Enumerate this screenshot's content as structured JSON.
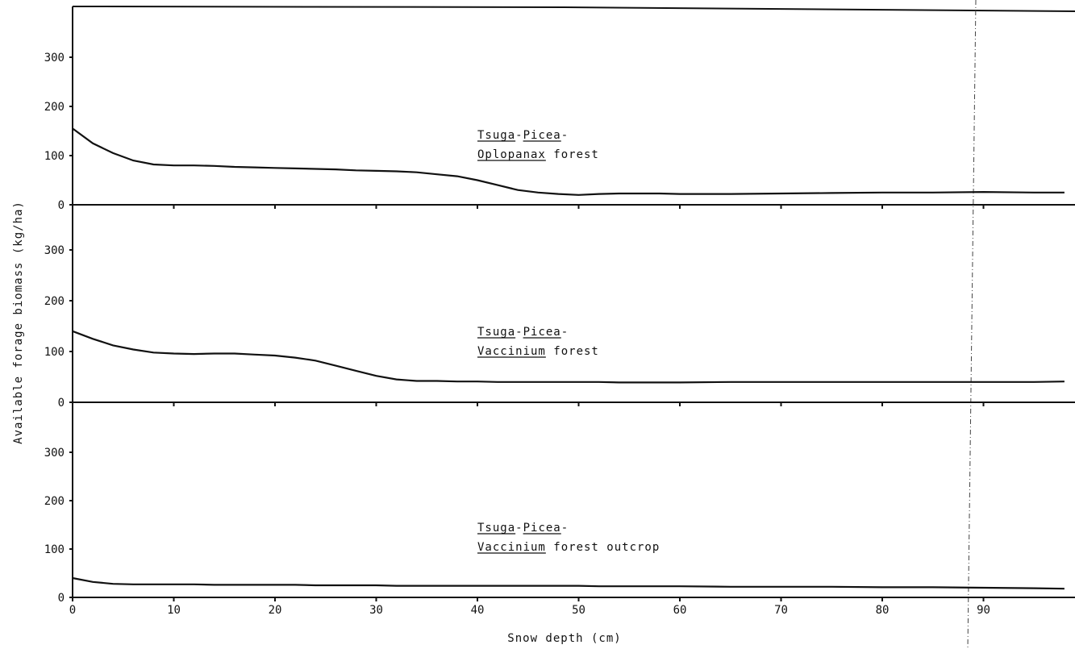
{
  "chart_data": {
    "type": "line",
    "xlabel": "Snow depth (cm)",
    "ylabel": "Available forage biomass (kg/ha)",
    "xlim": [
      0,
      98
    ],
    "x_ticks": [
      0,
      10,
      20,
      30,
      40,
      50,
      60,
      70,
      80,
      90
    ],
    "y_ticks": [
      0,
      100,
      200,
      300
    ],
    "grid": false,
    "x": [
      0,
      2,
      4,
      6,
      8,
      10,
      12,
      14,
      16,
      18,
      20,
      22,
      24,
      26,
      28,
      30,
      32,
      34,
      36,
      38,
      40,
      42,
      44,
      46,
      48,
      50,
      52,
      54,
      56,
      58,
      60,
      65,
      70,
      75,
      80,
      85,
      90,
      95,
      98
    ],
    "panels": [
      {
        "name_parts": [
          "Tsuga",
          "-",
          "Picea",
          "-"
        ],
        "name_line2_parts": [
          "Oplopanax",
          " forest"
        ],
        "ylim": [
          0,
          400
        ],
        "values": [
          155,
          125,
          105,
          90,
          82,
          80,
          80,
          79,
          77,
          76,
          75,
          74,
          73,
          72,
          70,
          69,
          68,
          66,
          62,
          58,
          50,
          40,
          30,
          25,
          22,
          20,
          22,
          23,
          23,
          23,
          22,
          22,
          23,
          24,
          25,
          25,
          26,
          25,
          25
        ]
      },
      {
        "name_parts": [
          "Tsuga",
          "-",
          "Picea",
          "-"
        ],
        "name_line2_parts": [
          "Vaccinium",
          " forest"
        ],
        "ylim": [
          0,
          400
        ],
        "values": [
          140,
          125,
          112,
          104,
          98,
          96,
          95,
          96,
          96,
          94,
          92,
          88,
          82,
          72,
          62,
          52,
          45,
          42,
          42,
          41,
          41,
          40,
          40,
          40,
          40,
          40,
          40,
          39,
          39,
          39,
          39,
          40,
          40,
          40,
          40,
          40,
          40,
          40,
          41
        ]
      },
      {
        "name_parts": [
          "Tsuga",
          "-",
          "Picea",
          "-"
        ],
        "name_line2_parts": [
          "Vaccinium",
          " forest outcrop"
        ],
        "ylim": [
          0,
          400
        ],
        "values": [
          40,
          32,
          28,
          27,
          27,
          27,
          27,
          26,
          26,
          26,
          26,
          26,
          25,
          25,
          25,
          25,
          24,
          24,
          24,
          24,
          24,
          24,
          24,
          24,
          24,
          24,
          23,
          23,
          23,
          23,
          23,
          22,
          22,
          22,
          21,
          21,
          20,
          19,
          18
        ]
      }
    ]
  }
}
